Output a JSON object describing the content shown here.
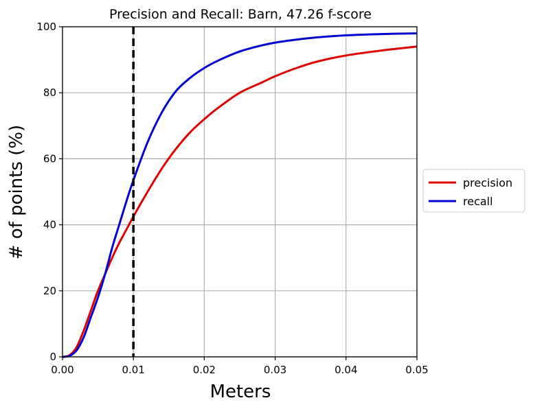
{
  "chart_data": {
    "type": "line",
    "title": "Precision and Recall: Barn, 47.26 f-score",
    "xlabel": "Meters",
    "ylabel": "# of points (%)",
    "xlim": [
      0,
      0.05
    ],
    "ylim": [
      0,
      100
    ],
    "xticks": [
      0,
      0.01,
      0.02,
      0.03,
      0.04,
      0.05
    ],
    "xtick_labels": [
      "0.00",
      "0.01",
      "0.02",
      "0.03",
      "0.04",
      "0.05"
    ],
    "yticks": [
      0,
      20,
      40,
      60,
      80,
      100
    ],
    "ytick_labels": [
      "0",
      "20",
      "40",
      "60",
      "80",
      "100"
    ],
    "grid": true,
    "threshold_line": {
      "x": 0.01,
      "style": "dashed",
      "color": "#000000"
    },
    "legend": {
      "placement": "right-outside"
    },
    "series": [
      {
        "name": "precision",
        "color": "#e00000",
        "x": [
          0,
          0.001,
          0.002,
          0.003,
          0.004,
          0.005,
          0.006,
          0.007,
          0.008,
          0.009,
          0.01,
          0.012,
          0.014,
          0.016,
          0.018,
          0.02,
          0.022,
          0.025,
          0.028,
          0.03,
          0.033,
          0.036,
          0.04,
          0.045,
          0.05
        ],
        "y": [
          0,
          0.5,
          3,
          8,
          14,
          20,
          25,
          30,
          34.5,
          38.5,
          42.5,
          50,
          57,
          63,
          68,
          72,
          75.5,
          80,
          83,
          85,
          87.5,
          89.5,
          91.3,
          92.8,
          94
        ]
      },
      {
        "name": "recall",
        "color": "#0000d0",
        "x": [
          0,
          0.001,
          0.002,
          0.003,
          0.004,
          0.005,
          0.006,
          0.007,
          0.008,
          0.009,
          0.01,
          0.012,
          0.014,
          0.016,
          0.018,
          0.02,
          0.022,
          0.025,
          0.028,
          0.03,
          0.033,
          0.036,
          0.04,
          0.045,
          0.05
        ],
        "y": [
          0,
          0.3,
          2,
          6,
          12,
          18,
          25,
          33,
          40,
          47,
          53.5,
          65,
          74,
          80.5,
          84.5,
          87.5,
          89.8,
          92.5,
          94.3,
          95.2,
          96.1,
          96.8,
          97.4,
          97.8,
          98
        ]
      }
    ]
  }
}
